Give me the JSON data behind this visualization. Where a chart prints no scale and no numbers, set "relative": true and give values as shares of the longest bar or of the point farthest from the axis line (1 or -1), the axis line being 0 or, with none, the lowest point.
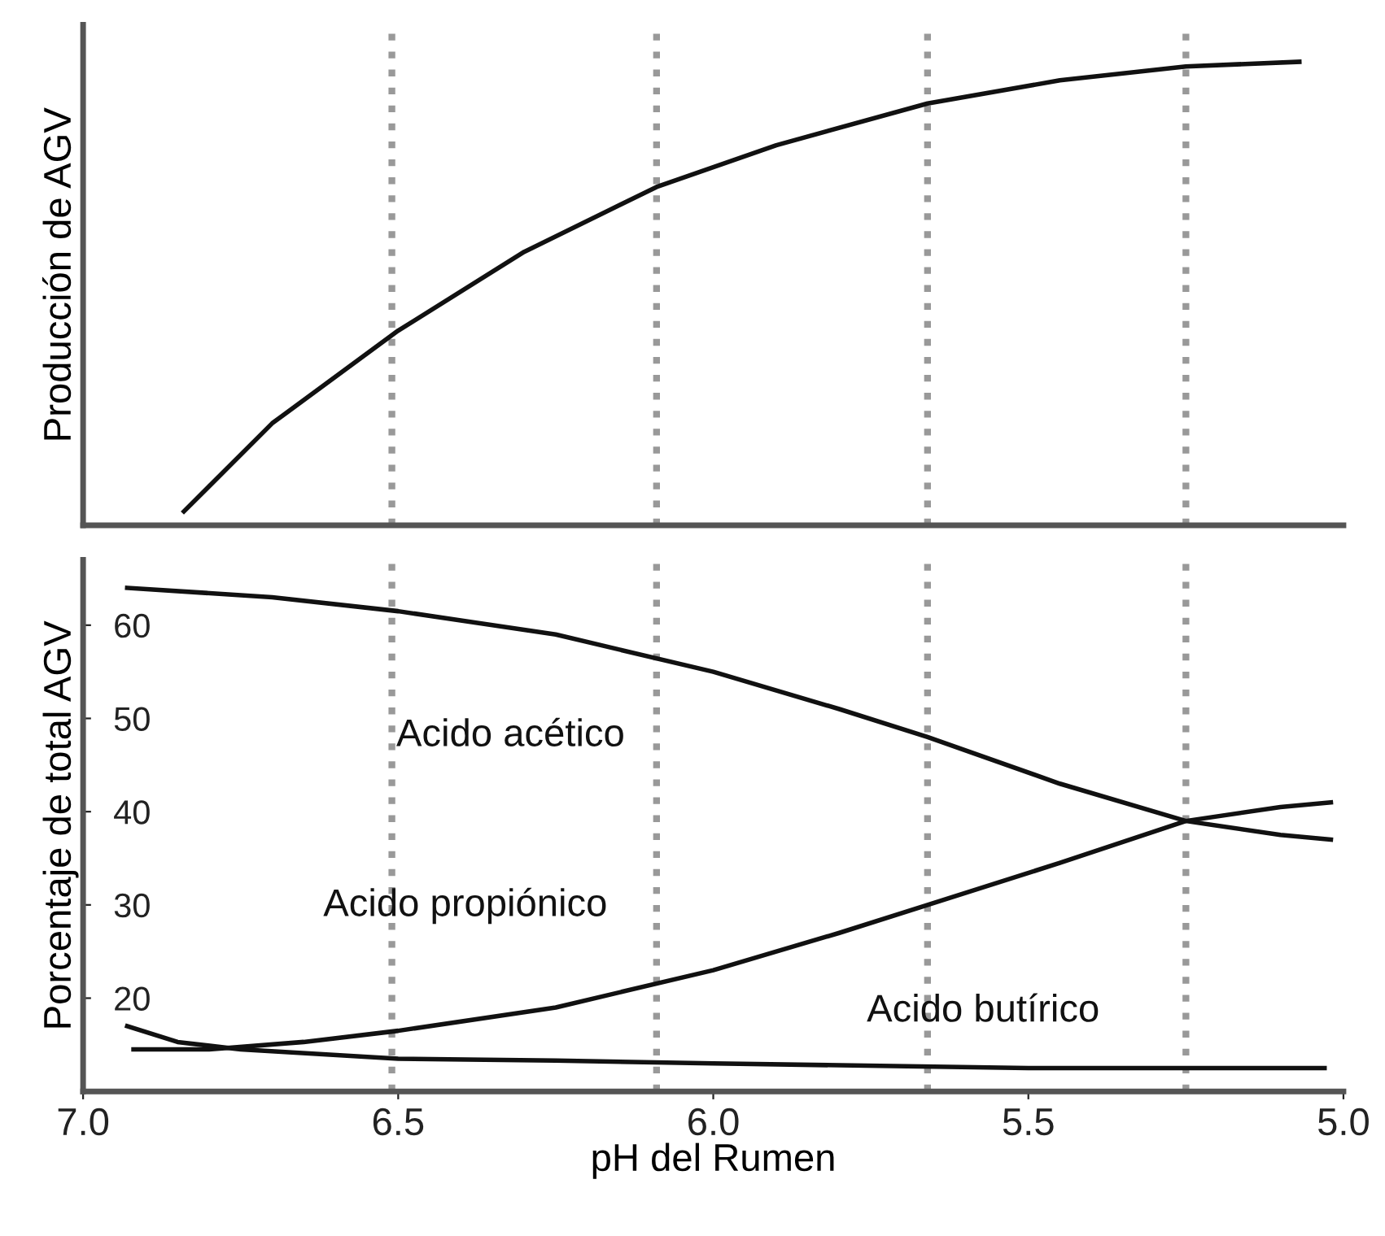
{
  "chart_data": [
    {
      "type": "line",
      "ylabel": "Producción de AGV",
      "relative": true,
      "xlim": [
        7.0,
        5.0
      ],
      "tick_labels": false,
      "x": [
        6.84,
        6.7,
        6.5,
        6.3,
        6.09,
        5.9,
        5.66,
        5.45,
        5.25,
        5.07
      ],
      "series": [
        {
          "color": "#111111",
          "values": [
            0.03,
            0.22,
            0.42,
            0.59,
            0.73,
            0.82,
            0.91,
            0.96,
            0.99,
            1.0
          ]
        }
      ],
      "ref_lines": [
        {
          "axis": "x",
          "value": 6.51,
          "line_style": "dotted",
          "color": "#999999"
        },
        {
          "axis": "x",
          "value": 6.09,
          "line_style": "dotted",
          "color": "#999999"
        },
        {
          "axis": "x",
          "value": 5.66,
          "line_style": "dotted",
          "color": "#999999"
        },
        {
          "axis": "x",
          "value": 5.25,
          "line_style": "dotted",
          "color": "#999999"
        }
      ]
    },
    {
      "type": "line",
      "xlabel": "pH del Rumen",
      "ylabel": "Porcentaje de total AGV",
      "xlim": [
        7.0,
        5.0
      ],
      "xticks": [
        {
          "value": 7.0,
          "label": "7.0"
        },
        {
          "value": 6.5,
          "label": "6.5"
        },
        {
          "value": 6.0,
          "label": "6.0"
        },
        {
          "value": 5.5,
          "label": "5.5"
        },
        {
          "value": 5.0,
          "label": "5.0"
        }
      ],
      "ylim": [
        10,
        67
      ],
      "yticks": [
        20,
        30,
        40,
        50,
        60
      ],
      "series": [
        {
          "name": "Acido acético",
          "color": "#111111",
          "x": [
            6.93,
            6.7,
            6.5,
            6.25,
            6.0,
            5.8,
            5.66,
            5.45,
            5.25,
            5.1,
            5.02
          ],
          "values": [
            64,
            63,
            61.5,
            59,
            55,
            51,
            48,
            43,
            39,
            37.5,
            37
          ]
        },
        {
          "name": "Acido propiónico",
          "color": "#111111",
          "x": [
            6.92,
            6.8,
            6.65,
            6.5,
            6.25,
            6.0,
            5.8,
            5.66,
            5.45,
            5.25,
            5.1,
            5.02
          ],
          "values": [
            14.5,
            14.5,
            15.3,
            16.5,
            19,
            23,
            27,
            30,
            34.5,
            39,
            40.5,
            41
          ]
        },
        {
          "name": "Acido butírico",
          "color": "#111111",
          "x": [
            6.93,
            6.85,
            6.75,
            6.5,
            6.25,
            6.0,
            5.5,
            5.03
          ],
          "values": [
            17,
            15.3,
            14.5,
            13.5,
            13.3,
            13,
            12.5,
            12.5
          ]
        }
      ],
      "ref_lines": [
        {
          "axis": "x",
          "value": 6.51,
          "line_style": "dotted",
          "color": "#999999"
        },
        {
          "axis": "x",
          "value": 6.09,
          "line_style": "dotted",
          "color": "#999999"
        },
        {
          "axis": "x",
          "value": 5.66,
          "line_style": "dotted",
          "color": "#999999"
        },
        {
          "axis": "x",
          "value": 5.25,
          "line_style": "dotted",
          "color": "#999999"
        }
      ]
    }
  ]
}
